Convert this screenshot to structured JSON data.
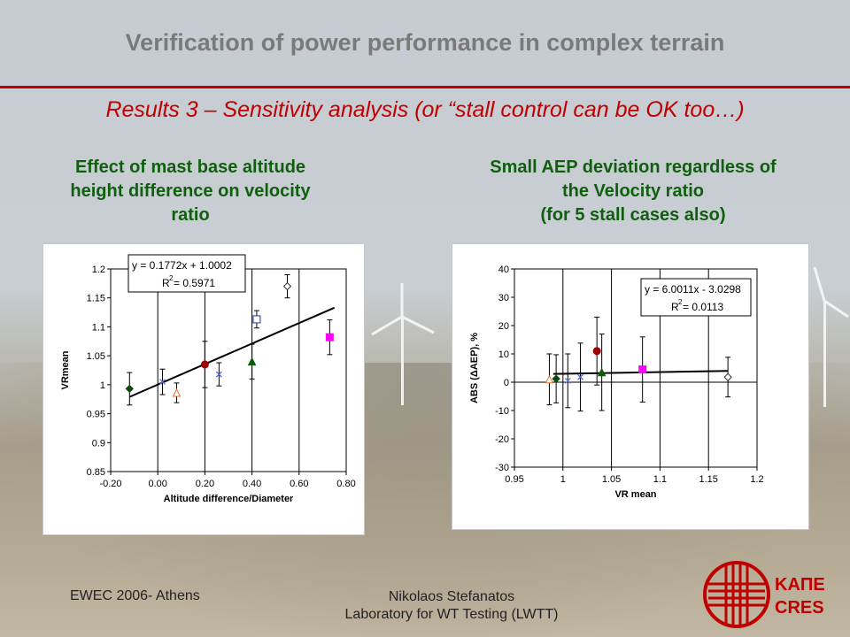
{
  "slide": {
    "title": "Verification of power performance in complex terrain",
    "subtitle": "Results 3 – Sensitivity analysis (or “stall control can be OK too…)",
    "left_heading": [
      "Effect of mast base altitude",
      "height difference on velocity",
      "ratio"
    ],
    "right_heading": [
      "Small AEP deviation regardless of",
      "the Velocity ratio",
      "(for 5 stall cases also)"
    ],
    "footer_left": "EWEC 2006- Athens",
    "footer_center": [
      "Nikolaos Stefanatos",
      "Laboratory for WT Testing (LWTT)"
    ],
    "logo": {
      "line1": "ΚΑΠΕ",
      "line2": "CRES",
      "color": "#c00000"
    },
    "accent_color": "#c00000",
    "heading_color": "#0f5f0f"
  },
  "chart_data": [
    {
      "type": "scatter",
      "xlabel": "Altitude difference/Diameter",
      "ylabel": "VRmean",
      "xlim": [
        -0.2,
        0.8
      ],
      "ylim": [
        0.85,
        1.2
      ],
      "xticks": [
        -0.2,
        0.0,
        0.2,
        0.4,
        0.6,
        0.8
      ],
      "xtick_labels": [
        "-0.20",
        "0.00",
        "0.20",
        "0.40",
        "0.60",
        "0.80"
      ],
      "yticks": [
        0.85,
        0.9,
        0.95,
        1.0,
        1.05,
        1.1,
        1.15,
        1.2
      ],
      "ytick_labels": [
        "0.85",
        "0.9",
        "0.95",
        "1",
        "1.05",
        "1.1",
        "1.15",
        "1.2"
      ],
      "grid": "vertical",
      "equation": "y = 0.1772x + 1.0002",
      "r2_label": "R",
      "r2_value": " = 0.5971",
      "trendline": {
        "x": [
          -0.12,
          0.75
        ],
        "slope": 0.1772,
        "intercept": 1.0002
      },
      "points": [
        {
          "x": -0.12,
          "y": 0.993,
          "err": 0.028,
          "marker": "diamond-filled",
          "color": "#0a4a0a"
        },
        {
          "x": 0.02,
          "y": 1.005,
          "err": 0.022,
          "marker": "x",
          "color": "#6677cc"
        },
        {
          "x": 0.08,
          "y": 0.986,
          "err": 0.017,
          "marker": "triangle-open",
          "color": "#e07030"
        },
        {
          "x": 0.2,
          "y": 1.035,
          "err": 0.04,
          "marker": "circle-filled",
          "color": "#a00000"
        },
        {
          "x": 0.26,
          "y": 1.018,
          "err": 0.02,
          "marker": "x",
          "color": "#5566cc"
        },
        {
          "x": 0.4,
          "y": 1.04,
          "err": 0.03,
          "marker": "triangle-filled",
          "color": "#0a5a0a"
        },
        {
          "x": 0.42,
          "y": 1.113,
          "err": 0.015,
          "marker": "square-open",
          "color": "#1a3aa0"
        },
        {
          "x": 0.55,
          "y": 1.17,
          "err": 0.02,
          "marker": "diamond-open",
          "color": "#333333"
        },
        {
          "x": 0.73,
          "y": 1.082,
          "err": 0.03,
          "marker": "square-filled",
          "color": "#ff00ff"
        }
      ]
    },
    {
      "type": "scatter",
      "xlabel": "VR mean",
      "ylabel": "ABS (ΔAEP), %",
      "xlim": [
        0.95,
        1.2
      ],
      "ylim": [
        -30,
        40
      ],
      "xticks": [
        0.95,
        1.0,
        1.05,
        1.1,
        1.15,
        1.2
      ],
      "xtick_labels": [
        "0.95",
        "1",
        "1.05",
        "1.1",
        "1.15",
        "1.2"
      ],
      "yticks": [
        -30,
        -20,
        -10,
        0,
        10,
        20,
        30,
        40
      ],
      "ytick_labels": [
        "-30",
        "-20",
        "-10",
        "0",
        "10",
        "20",
        "30",
        "40"
      ],
      "grid": "vertical",
      "equation": "y = 6.0011x - 3.0298",
      "r2_label": "R",
      "r2_value": " = 0.0113",
      "trendline": {
        "x": [
          0.99,
          1.17
        ],
        "slope": 6.0011,
        "intercept": -3.0298
      },
      "points": [
        {
          "x": 0.986,
          "y": 1.0,
          "err": 9.0,
          "marker": "triangle-open",
          "color": "#e07030"
        },
        {
          "x": 0.993,
          "y": 1.2,
          "err": 8.5,
          "marker": "diamond-filled",
          "color": "#0a4a0a"
        },
        {
          "x": 1.005,
          "y": 0.5,
          "err": 9.5,
          "marker": "x",
          "color": "#6677cc"
        },
        {
          "x": 1.018,
          "y": 1.8,
          "err": 12.0,
          "marker": "x",
          "color": "#5566cc"
        },
        {
          "x": 1.035,
          "y": 11.0,
          "err": 12.0,
          "marker": "circle-filled",
          "color": "#a00000"
        },
        {
          "x": 1.04,
          "y": 3.5,
          "err": 13.5,
          "marker": "triangle-filled",
          "color": "#0a5a0a"
        },
        {
          "x": 1.082,
          "y": 4.5,
          "err": 11.5,
          "marker": "square-filled",
          "color": "#ff00ff"
        },
        {
          "x": 1.17,
          "y": 1.8,
          "err": 7.0,
          "marker": "diamond-open",
          "color": "#333333"
        }
      ]
    }
  ]
}
